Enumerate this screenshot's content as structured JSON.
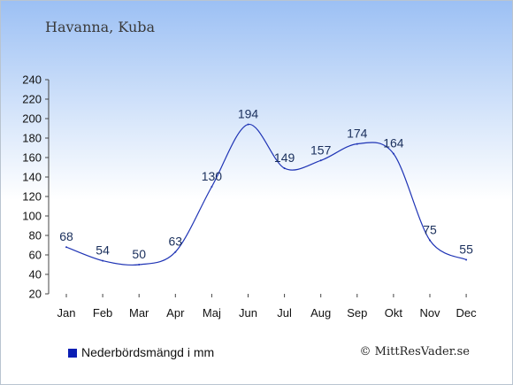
{
  "header": {
    "city": "Havanna, Kuba"
  },
  "legend": {
    "label": "Nederbördsmängd i mm",
    "swatch_color": "#0a1eb4"
  },
  "footer": {
    "copyright": "© MittResVader.se"
  },
  "colors": {
    "line": "#1f34b5",
    "axis": "#444444",
    "label": "#1a2f5c"
  },
  "chart_data": {
    "type": "line",
    "title": "",
    "xlabel": "",
    "ylabel": "",
    "categories": [
      "Jan",
      "Feb",
      "Mar",
      "Apr",
      "Maj",
      "Jun",
      "Jul",
      "Aug",
      "Sep",
      "Okt",
      "Nov",
      "Dec"
    ],
    "series": [
      {
        "name": "Nederbördsmängd i mm",
        "values": [
          68,
          54,
          50,
          63,
          130,
          194,
          149,
          157,
          174,
          164,
          75,
          55
        ]
      }
    ],
    "ylim": [
      20,
      240
    ],
    "yticks": [
      20,
      40,
      60,
      80,
      100,
      120,
      140,
      160,
      180,
      200,
      220,
      240
    ],
    "grid": false,
    "legend_position": "bottom-left"
  }
}
